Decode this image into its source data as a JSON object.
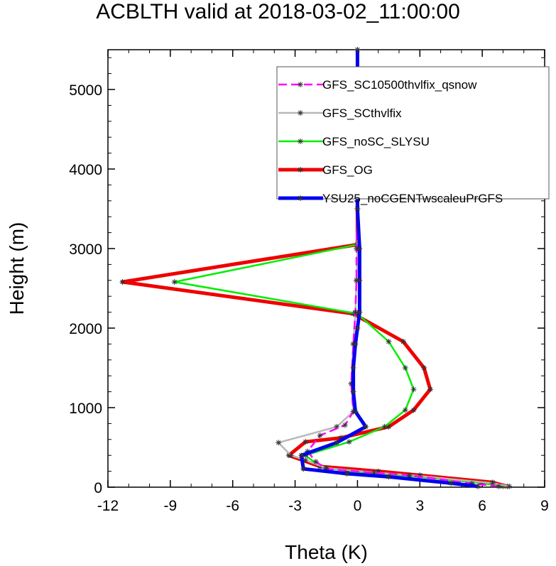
{
  "chart_data": {
    "type": "line",
    "title": "ACBLTH valid at 2018-03-02_11:00:00",
    "xlabel": "Theta (K)",
    "ylabel": "Height (m)",
    "xlim": [
      -12,
      9
    ],
    "ylim": [
      0,
      5500
    ],
    "xticks": [
      -12,
      -9,
      -6,
      -3,
      0,
      3,
      6,
      9
    ],
    "yticks": [
      0,
      1000,
      2000,
      3000,
      4000,
      5000
    ],
    "xtick_labels": [
      "-12",
      "-9",
      "-6",
      "-3",
      "0",
      "3",
      "6",
      "9"
    ],
    "ytick_labels": [
      "0",
      "1000",
      "2000",
      "3000",
      "4000",
      "5000"
    ],
    "grid": false,
    "legend_position": "top-right",
    "series": [
      {
        "name": "GFS_SC10500thvlfix_qsnow",
        "color": "#ff00ff",
        "dash": "dashed",
        "x": [
          6.8,
          5.5,
          2.5,
          0.8,
          -1.5,
          -2.0,
          -2.4,
          -1.8,
          -0.6,
          -0.2,
          -0.3,
          -0.2,
          -0.1,
          -0.05,
          -0.05,
          0.0,
          0.0,
          0.0,
          0.0,
          0.0
        ],
        "y": [
          10,
          45,
          150,
          180,
          230,
          320,
          450,
          650,
          780,
          950,
          1300,
          1800,
          2200,
          2600,
          3000,
          3500,
          4000,
          4500,
          5000,
          5500
        ]
      },
      {
        "name": "GFS_SCthvlfix",
        "color": "#b8b8b8",
        "dash": "solid",
        "x": [
          7.3,
          6.5,
          3.0,
          1.0,
          -1.5,
          -2.5,
          -3.2,
          -3.8,
          -1.0,
          -0.2,
          -0.3,
          -0.2,
          -0.1,
          -0.05,
          0.0,
          0.0,
          0.0,
          0.0,
          0.0
        ],
        "y": [
          10,
          50,
          140,
          180,
          240,
          340,
          400,
          560,
          760,
          950,
          1300,
          1800,
          2200,
          2600,
          3000,
          3500,
          4000,
          4500,
          5000
        ]
      },
      {
        "name": "GFS_noSC_SLYSU",
        "color": "#00ee00",
        "dash": "solid",
        "x": [
          7.0,
          6.0,
          2.5,
          -0.5,
          -1.8,
          -2.5,
          -0.4,
          1.3,
          2.3,
          2.7,
          2.3,
          1.5,
          0.0,
          -8.8,
          0.0,
          0.0,
          0.0,
          0.0,
          0.0
        ],
        "y": [
          10,
          50,
          140,
          200,
          260,
          400,
          570,
          760,
          970,
          1230,
          1500,
          1830,
          2180,
          2580,
          3050,
          3500,
          4000,
          4500,
          5000
        ]
      },
      {
        "name": "GFS_OG",
        "color": "#ee0000",
        "dash": "solid",
        "x": [
          7.2,
          6.5,
          3.0,
          1.0,
          -1.8,
          -3.3,
          -2.5,
          -0.8,
          1.5,
          2.7,
          3.5,
          3.2,
          2.2,
          -0.2,
          -11.3,
          0.0,
          0.0,
          0.0,
          0.0,
          0.0
        ],
        "y": [
          10,
          60,
          150,
          200,
          260,
          400,
          570,
          620,
          760,
          970,
          1230,
          1500,
          1830,
          2180,
          2580,
          3050,
          3500,
          4000,
          4500,
          5000
        ]
      },
      {
        "name": "YSU25_noCGENTwscaleuPrGFS",
        "color": "#0000ee",
        "dash": "solid",
        "x": [
          5.8,
          4.5,
          1.5,
          -0.5,
          -2.6,
          -2.7,
          -1.0,
          0.4,
          -0.1,
          -0.2,
          -0.2,
          -0.1,
          0.0,
          0.1,
          0.1,
          0.1,
          0.0,
          0.0,
          -0.1,
          -0.2,
          0.0,
          0.0,
          0.0
        ],
        "y": [
          10,
          50,
          130,
          170,
          230,
          400,
          560,
          760,
          950,
          1200,
          1500,
          1800,
          2000,
          2200,
          2600,
          3000,
          3500,
          3800,
          4100,
          4300,
          4600,
          5000,
          5500
        ]
      }
    ]
  }
}
